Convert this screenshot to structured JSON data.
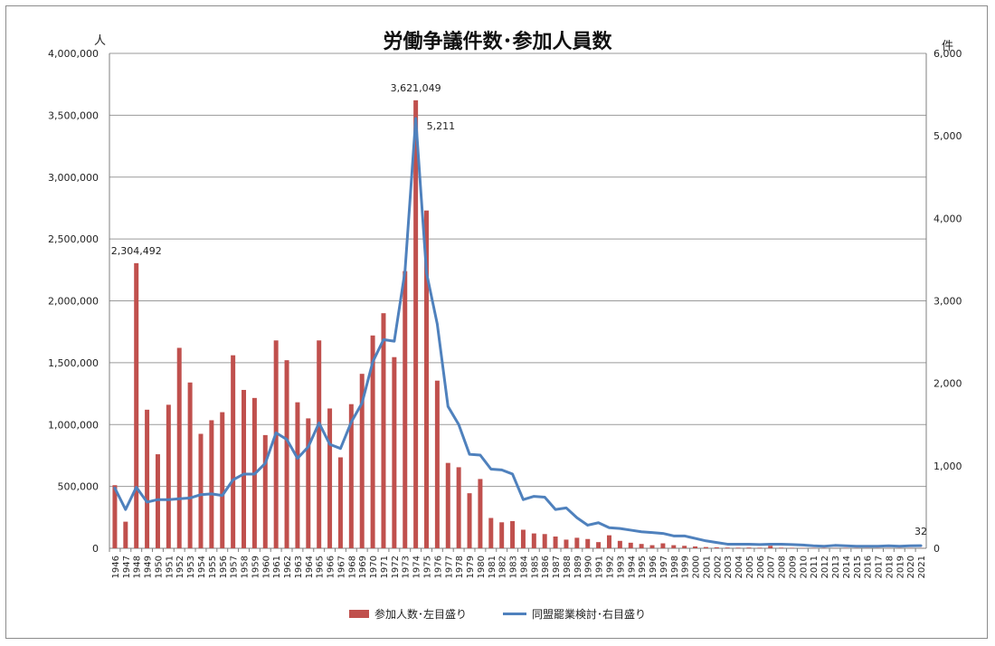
{
  "chart_data": {
    "type": "bar",
    "title": "労働争議件数･参加人員数",
    "left_axis_unit": "人",
    "right_axis_unit": "件",
    "ylim_left": [
      0,
      4000000
    ],
    "ylim_right": [
      0,
      6000
    ],
    "left_ticks": [
      "0",
      "500,000",
      "1,000,000",
      "1,500,000",
      "2,000,000",
      "2,500,000",
      "3,000,000",
      "3,500,000",
      "4,000,000"
    ],
    "right_ticks": [
      "0",
      "1,000",
      "2,000",
      "3,000",
      "4,000",
      "5,000",
      "6,000"
    ],
    "grid": true,
    "legend_position": "bottom",
    "years": [
      "1946",
      "1947",
      "1948",
      "1949",
      "1950",
      "1951",
      "1952",
      "1953",
      "1954",
      "1955",
      "1956",
      "1957",
      "1958",
      "1959",
      "1960",
      "1961",
      "1962",
      "1963",
      "1964",
      "1965",
      "1966",
      "1967",
      "1968",
      "1969",
      "1970",
      "1971",
      "1972",
      "1973",
      "1974",
      "1975",
      "1976",
      "1977",
      "1978",
      "1979",
      "1980",
      "1981",
      "1982",
      "1983",
      "1984",
      "1985",
      "1986",
      "1987",
      "1988",
      "1989",
      "1990",
      "1991",
      "1992",
      "1993",
      "1994",
      "1995",
      "1996",
      "1997",
      "1998",
      "1999",
      "2000",
      "2001",
      "2002",
      "2003",
      "2004",
      "2005",
      "2006",
      "2007",
      "2008",
      "2009",
      "2010",
      "2011",
      "2012",
      "2013",
      "2014",
      "2015",
      "2016",
      "2017",
      "2018",
      "2019",
      "2020",
      "2021"
    ],
    "x_tick_labels": [
      "1946",
      "1947",
      "1948",
      "1949",
      "1950",
      "1951",
      "1952",
      "1953",
      "1954",
      "1955",
      "1956",
      "1957",
      "1958",
      "1959",
      "1960",
      "1961",
      "1962",
      "1963",
      "1964",
      "1965",
      "1966",
      "1967",
      "1968",
      "1969",
      "1970",
      "1971",
      "1972",
      "1973",
      "1974",
      "1975",
      "1976",
      "1977",
      "1978",
      "1979",
      "1980",
      "1981",
      "1982",
      "1983",
      "1984",
      "1985",
      "1986",
      "1987",
      "1988",
      "1989",
      "1990",
      "1991",
      "1992",
      "1993",
      "1994",
      "1995",
      "1996",
      "1997",
      "1998",
      "1999",
      "2000",
      "2001",
      "2002",
      "2003",
      "2004",
      "2005",
      "2006",
      "2007",
      "2008",
      "2009",
      "2010",
      "2011",
      "2012",
      "2013",
      "2014",
      "2015",
      "2016",
      "2017",
      "2018",
      "2019",
      "2020",
      "2021"
    ],
    "series": [
      {
        "name": "参加人数･左目盛り",
        "type": "bar",
        "axis": "left",
        "color": "#c0504d",
        "values": [
          510000,
          215000,
          2304492,
          1120000,
          760000,
          1160000,
          1620000,
          1340000,
          925000,
          1035000,
          1100000,
          1560000,
          1280000,
          1215000,
          915000,
          1680000,
          1520000,
          1180000,
          1050000,
          1680000,
          1130000,
          735000,
          1165000,
          1410000,
          1720000,
          1900000,
          1545000,
          2240000,
          3621049,
          2730000,
          1355000,
          690000,
          655000,
          445000,
          560000,
          245000,
          210000,
          220000,
          150000,
          120000,
          115000,
          95000,
          70000,
          85000,
          75000,
          50000,
          105000,
          60000,
          45000,
          35000,
          25000,
          40000,
          25000,
          20000,
          15000,
          10000,
          8000,
          6000,
          5000,
          6000,
          5000,
          20000,
          5000,
          4000,
          3000,
          3000,
          3000,
          2000,
          3000,
          2000,
          2000,
          2000,
          1500,
          2000,
          2000,
          1500
        ]
      },
      {
        "name": "同盟罷業検討･右目盛り",
        "type": "line",
        "axis": "right",
        "color": "#4f81bd",
        "values": [
          730,
          470,
          740,
          560,
          590,
          590,
          600,
          610,
          650,
          660,
          640,
          830,
          900,
          900,
          1030,
          1400,
          1320,
          1090,
          1230,
          1520,
          1260,
          1210,
          1530,
          1760,
          2260,
          2530,
          2510,
          3360,
          5211,
          3340,
          2720,
          1720,
          1500,
          1140,
          1130,
          960,
          950,
          900,
          590,
          630,
          620,
          470,
          490,
          370,
          280,
          310,
          250,
          240,
          220,
          200,
          190,
          180,
          150,
          150,
          120,
          90,
          70,
          50,
          50,
          50,
          45,
          50,
          50,
          45,
          40,
          30,
          25,
          35,
          30,
          25,
          25,
          25,
          30,
          25,
          30,
          32
        ]
      }
    ],
    "annotations": [
      {
        "label": "2,304,492",
        "series": 0,
        "index": 2
      },
      {
        "label": "3,621,049",
        "series": 0,
        "index": 28
      },
      {
        "label": "5,211",
        "series": 1,
        "index": 28
      },
      {
        "label": "32",
        "series": 1,
        "index": 75
      }
    ]
  }
}
